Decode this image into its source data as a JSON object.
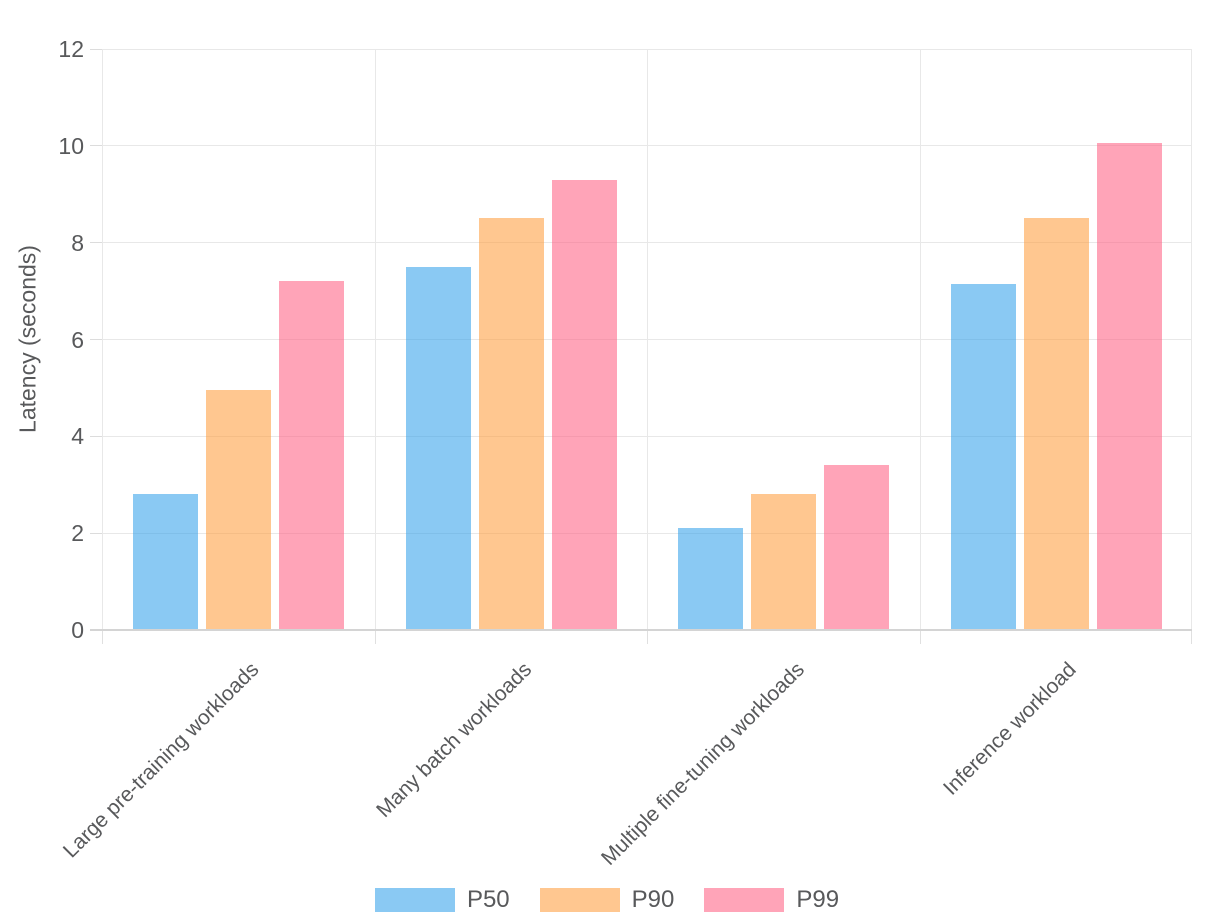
{
  "chart_data": {
    "type": "bar",
    "bar_mode": "grouped",
    "title": "",
    "xlabel": "",
    "ylabel": "Latency (seconds)",
    "ylim": [
      0,
      12
    ],
    "yticks": [
      0,
      2,
      4,
      6,
      8,
      10,
      12
    ],
    "grid": true,
    "legend_position": "bottom",
    "categories": [
      "Large pre-training workloads",
      "Many batch workloads",
      "Multiple fine-tuning workloads",
      "Inference workload"
    ],
    "series": [
      {
        "name": "P50",
        "color": "#36A2EB",
        "values": [
          2.8,
          7.5,
          2.1,
          7.15
        ]
      },
      {
        "name": "P90",
        "color": "#FF9F40",
        "values": [
          4.95,
          8.5,
          2.8,
          8.5
        ]
      },
      {
        "name": "P99",
        "color": "#FF6384",
        "values": [
          7.2,
          9.3,
          3.4,
          10.05
        ]
      }
    ],
    "fill_alpha": 0.58
  },
  "style": {
    "text_color": "#58595b",
    "grid_color": "#e8e8e8",
    "axis_line_color": "#d4d4d4",
    "background": "#ffffff"
  }
}
